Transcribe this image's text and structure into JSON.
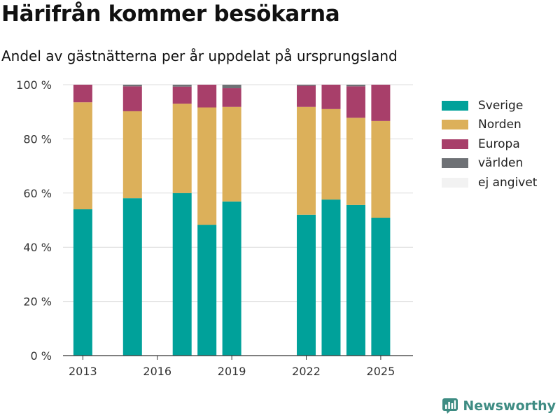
{
  "header": {
    "title": "Härifrån kommer besökarna",
    "subtitle": "Andel av gästnätterna per år uppdelat på ursprungsland"
  },
  "chart_data": {
    "type": "bar",
    "stacked": true,
    "categories": [
      2013,
      2015,
      2017,
      2018,
      2019,
      2022,
      2023,
      2024,
      2025
    ],
    "series": [
      {
        "name": "Sverige",
        "color": "#00a19a",
        "values": [
          54.0,
          58.1,
          60.0,
          48.3,
          56.9,
          52.0,
          57.6,
          55.6,
          50.9
        ]
      },
      {
        "name": "Norden",
        "color": "#dcb05a",
        "values": [
          39.5,
          32.1,
          33.0,
          43.3,
          34.9,
          39.8,
          33.4,
          32.2,
          35.7
        ]
      },
      {
        "name": "Europa",
        "color": "#a83f6a",
        "values": [
          6.5,
          9.2,
          6.3,
          8.4,
          6.9,
          7.8,
          9.0,
          11.6,
          13.4
        ]
      },
      {
        "name": "världen",
        "color": "#6e7175",
        "values": [
          0.0,
          0.6,
          0.7,
          0.0,
          1.3,
          0.4,
          0.0,
          0.6,
          0.0
        ]
      },
      {
        "name": "ej angivet",
        "color": "#f2f2f2",
        "values": [
          0.0,
          0.0,
          0.0,
          0.0,
          0.0,
          0.0,
          0.0,
          0.0,
          0.0
        ]
      }
    ],
    "x_ticks": [
      2013,
      2016,
      2019,
      2022,
      2025
    ],
    "xlim": [
      2012.2,
      2026.3
    ],
    "y_ticks": [
      "0 %",
      "20 %",
      "40 %",
      "60 %",
      "80 %",
      "100 %"
    ],
    "ylim": [
      0,
      100
    ],
    "xlabel": "",
    "ylabel": "",
    "grid": true,
    "legend_position": "right"
  },
  "brand": {
    "name": "Newsworthy",
    "icon": "newsworthy-logo-icon",
    "color": "#3e8c83"
  }
}
